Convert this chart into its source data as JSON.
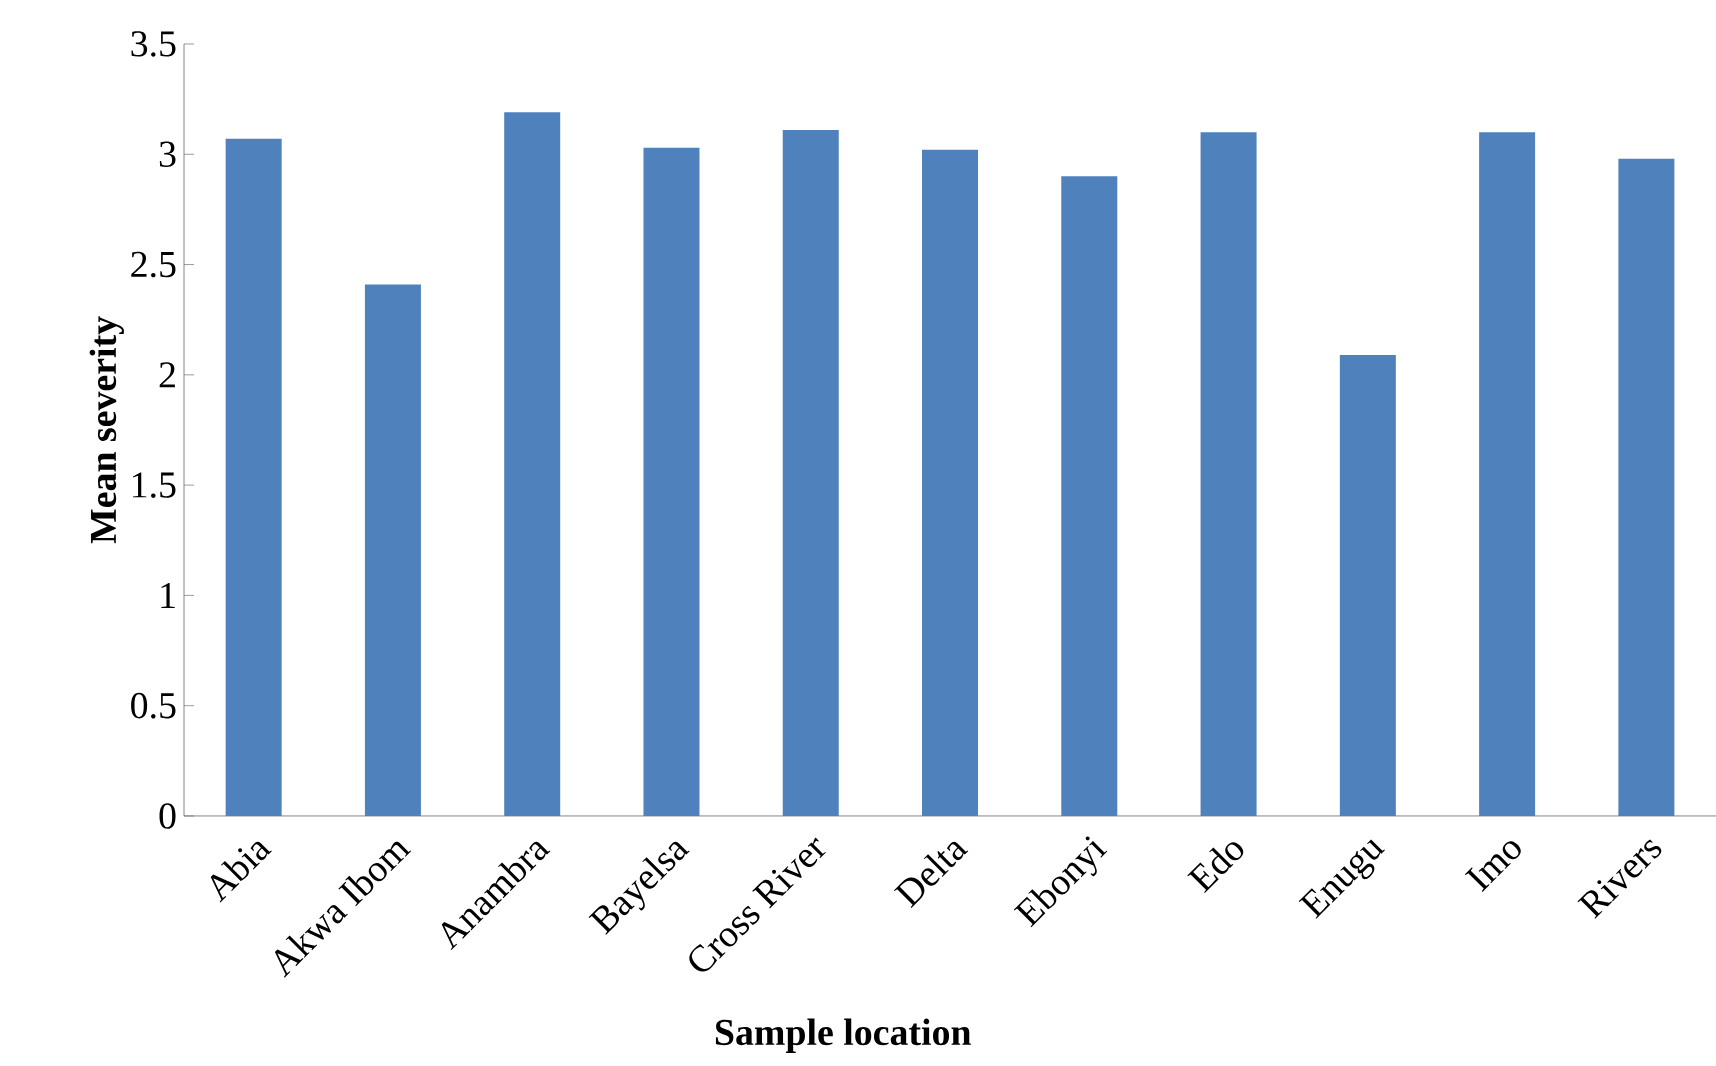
{
  "chart_data": {
    "type": "bar",
    "xlabel": "Sample location",
    "ylabel": "Mean severity",
    "categories": [
      "Abia",
      "Akwa Ibom",
      "Anambra",
      "Bayelsa",
      "Cross River",
      "Delta",
      "Ebonyi",
      "Edo",
      "Enugu",
      "Imo",
      "Rivers"
    ],
    "values": [
      3.07,
      2.41,
      3.19,
      3.03,
      3.11,
      3.02,
      2.9,
      3.1,
      2.09,
      3.1,
      2.98
    ],
    "color": "#4f81bd",
    "ylim": [
      0,
      3.5
    ],
    "yticks": [
      0,
      0.5,
      1,
      1.5,
      2,
      2.5,
      3,
      3.5
    ],
    "grid": false
  }
}
